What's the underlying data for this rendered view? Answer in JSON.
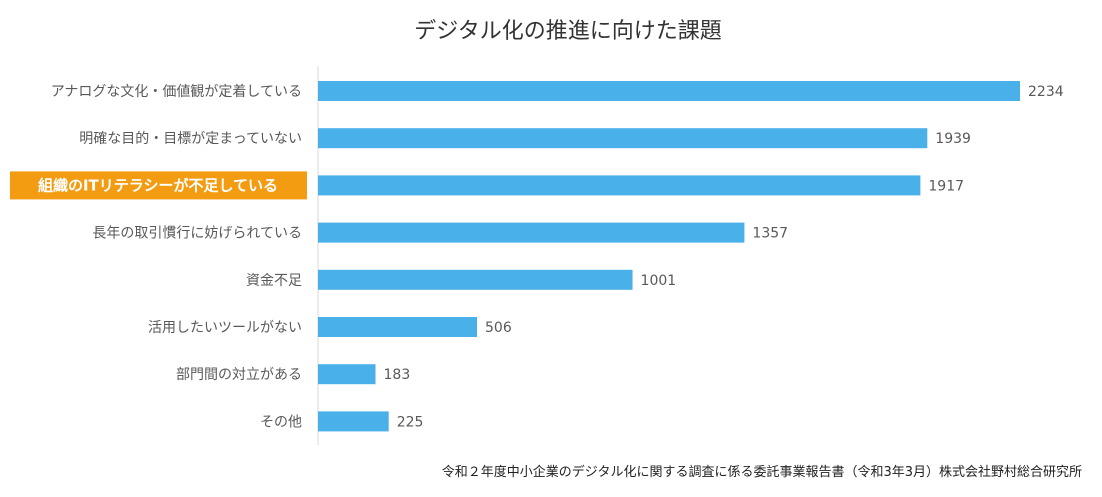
{
  "chart_data": {
    "type": "bar",
    "orientation": "horizontal",
    "title": "デジタル化の推進に向けた課題",
    "source": "令和２年度中小企業のデジタル化に関する調査に係る委託事業報告書（令和3年3月）株式会社野村総合研究所",
    "categories": [
      "アナログな文化・価値観が定着している",
      "明確な目的・目標が定まっていない",
      "組織のITリテラシーが不足している",
      "長年の取引慣行に妨げられている",
      "資金不足",
      "活用したいツールがない",
      "部門間の対立がある",
      "その他"
    ],
    "values": [
      2234,
      1939,
      1917,
      1357,
      1001,
      506,
      183,
      225
    ],
    "highlight_index": 2,
    "xlim": [
      0,
      2400
    ],
    "grid": false,
    "legend": "none",
    "colors": {
      "bar": "#4AB0EA",
      "highlight_background": "#F39C12",
      "highlight_text": "#FFFFFF",
      "axis": "#D9D9D9",
      "text": "#595959",
      "title": "#333333"
    }
  }
}
